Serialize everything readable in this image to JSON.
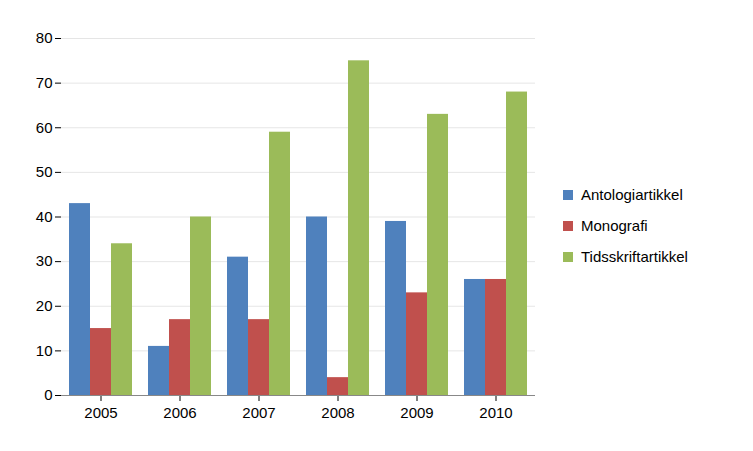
{
  "chart_data": {
    "type": "bar",
    "categories": [
      "2005",
      "2006",
      "2007",
      "2008",
      "2009",
      "2010"
    ],
    "series": [
      {
        "name": "Antologiartikkel",
        "color": "#4f81bd",
        "values": [
          43,
          11,
          31,
          40,
          39,
          26
        ]
      },
      {
        "name": "Monografi",
        "color": "#c0504d",
        "values": [
          15,
          17,
          17,
          4,
          23,
          26
        ]
      },
      {
        "name": "Tidsskriftartikkel",
        "color": "#9bbb59",
        "values": [
          34,
          40,
          59,
          75,
          63,
          68
        ]
      }
    ],
    "ylim": [
      0,
      80
    ],
    "yticks": [
      0,
      10,
      20,
      30,
      40,
      50,
      60,
      70,
      80
    ],
    "grid": true,
    "legend": "right"
  }
}
